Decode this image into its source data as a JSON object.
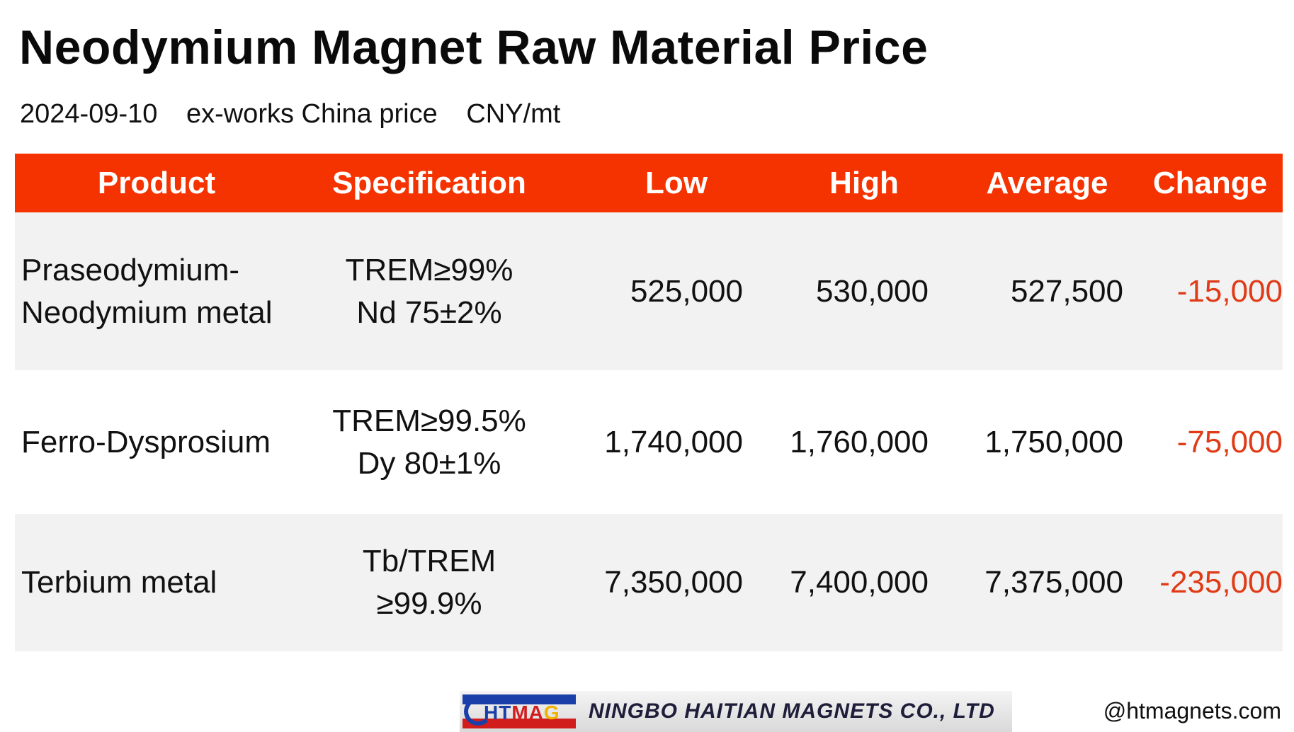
{
  "title": "Neodymium Magnet Raw Material Price",
  "subtitle": {
    "date": "2024-09-10",
    "basis": "ex-works China price",
    "unit": "CNY/mt"
  },
  "table": {
    "header": [
      "Product",
      "Specification",
      "Low",
      "High",
      "Average",
      "Change"
    ],
    "rows": [
      {
        "product": [
          "Praseodymium-",
          "Neodymium metal"
        ],
        "spec": [
          "TREM≥99%",
          "Nd 75±2%"
        ],
        "low": "525,000",
        "high": "530,000",
        "average": "527,500",
        "change": "-15,000"
      },
      {
        "product": [
          "Ferro-Dysprosium"
        ],
        "spec": [
          "TREM≥99.5%",
          "Dy 80±1%"
        ],
        "low": "1,740,000",
        "high": "1,760,000",
        "average": "1,750,000",
        "change": "-75,000"
      },
      {
        "product": [
          "Terbium metal"
        ],
        "spec": [
          "Tb/TREM",
          "≥99.9%"
        ],
        "low": "7,350,000",
        "high": "7,400,000",
        "average": "7,375,000",
        "change": "-235,000"
      }
    ]
  },
  "footer": {
    "logo_letters": {
      "h": "HT",
      "m": "MA",
      "g": "G"
    },
    "company": "NINGBO HAITIAN MAGNETS CO., LTD",
    "handle": "@htmagnets.com"
  },
  "colors": {
    "header_bg": "#f53300",
    "header_text": "#ffffff",
    "row_shade": "#f2f2f2",
    "change_text": "#e03a16"
  }
}
